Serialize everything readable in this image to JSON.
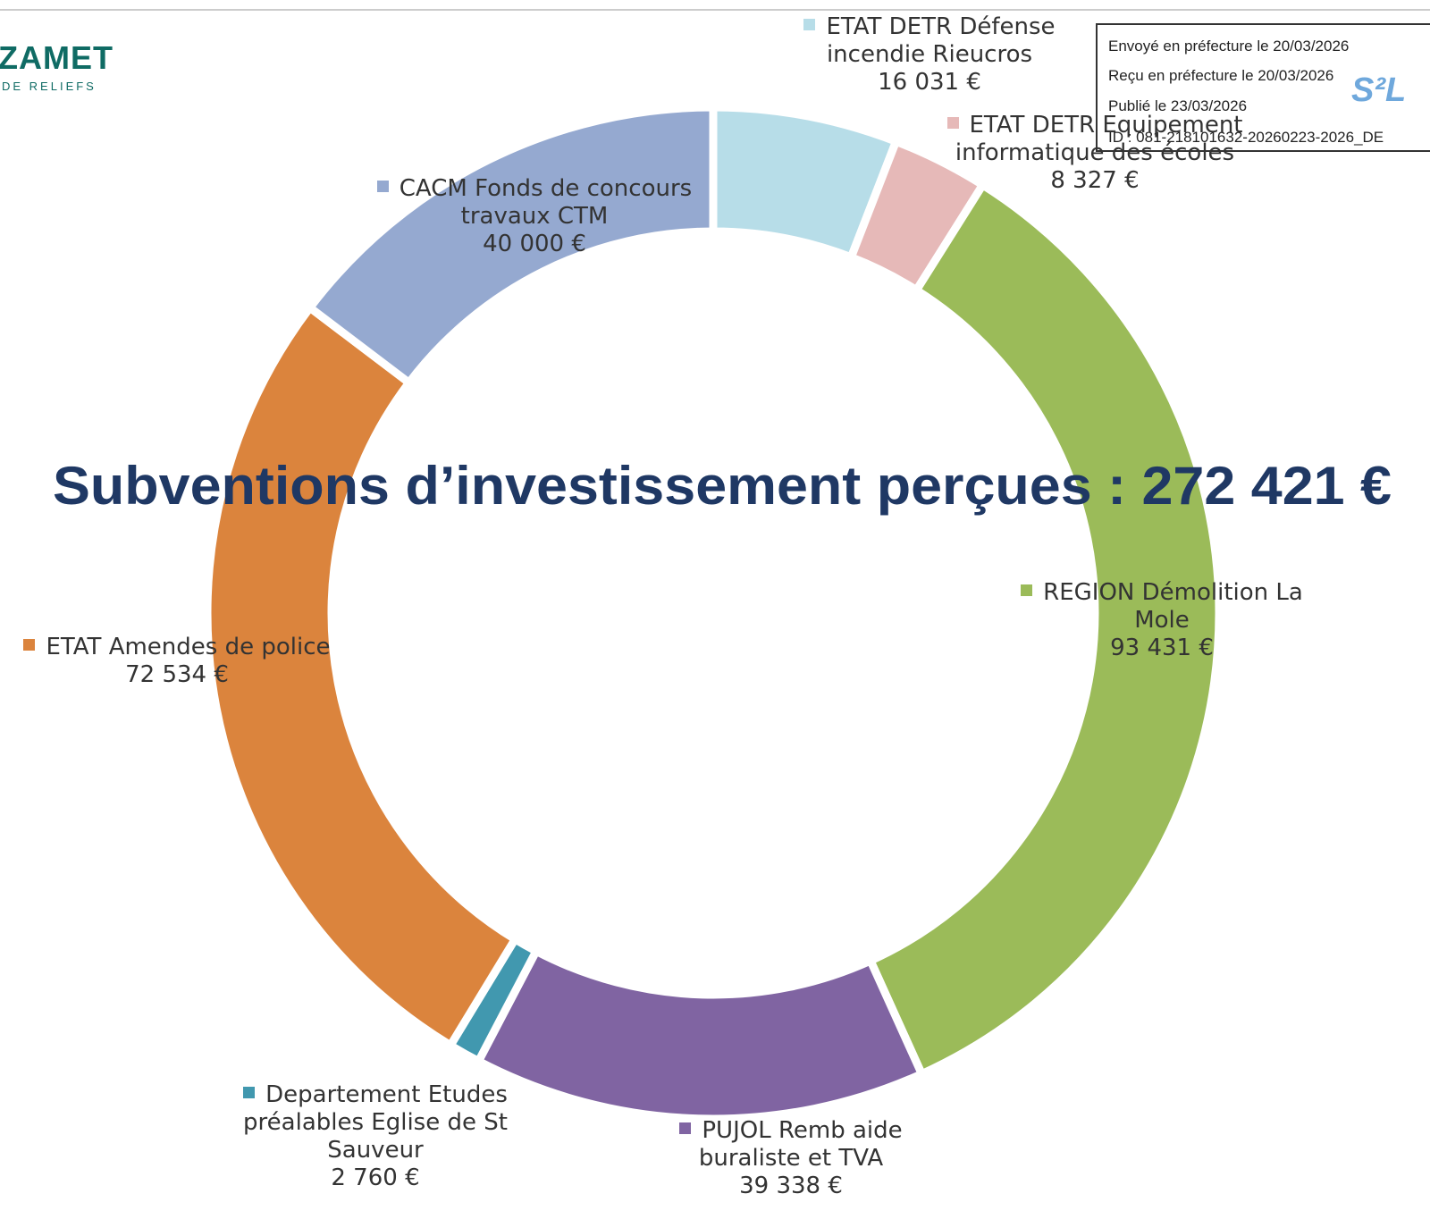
{
  "chart_data": {
    "type": "donut",
    "title": "Subventions d’investissement perçues : 272 421 €",
    "categories": [
      "ETAT DETR Défense incendie Rieucros",
      "ETAT DETR Equipement informatique des écoles",
      "REGION Démolition La Mole",
      "PUJOL Remb aide buraliste et TVA",
      "Departement Etudes préalables Eglise de St Sauveur",
      "ETAT Amendes de police",
      "CACM Fonds de concours travaux CTM"
    ],
    "values": [
      16031,
      8327,
      93431,
      39338,
      2760,
      72534,
      40000
    ],
    "value_labels": [
      "16 031 €",
      "8 327 €",
      "93 431 €",
      "39 338 €",
      "2 760 €",
      "72 534 €",
      "40 000 €"
    ],
    "colors": [
      "#b7dde8",
      "#e6b9b8",
      "#9bbb59",
      "#8064a2",
      "#4198af",
      "#db843d",
      "#95a9d0"
    ]
  },
  "logo": {
    "name": "ZAMET",
    "tagline": "DE RELIEFS",
    "badge": "S²L"
  },
  "stamp": [
    "Envoyé en préfecture le 20/03/2026",
    "Reçu en préfecture le 20/03/2026",
    "Publié le 23/03/2026",
    "ID : 081-218101632-20260223-2026_DE"
  ]
}
